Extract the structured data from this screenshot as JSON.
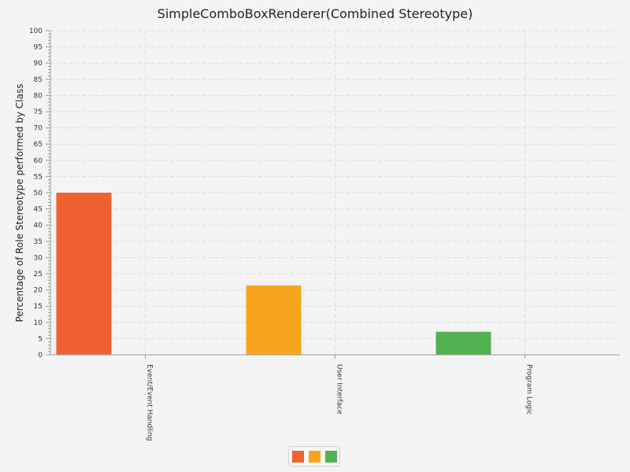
{
  "chart_data": {
    "type": "bar",
    "title": "SimpleComboBoxRenderer(Combined Stereotype)",
    "xlabel": "",
    "ylabel": "Percentage of Role Stereotype performed by Class",
    "categories": [
      "Event/Event Handling",
      "User Interface",
      "Program Logic"
    ],
    "values": [
      50,
      21.4,
      7.1
    ],
    "colors": [
      "#f06030",
      "#f8a51e",
      "#52b152"
    ],
    "ylim": [
      0,
      100
    ],
    "yticks": [
      0,
      5,
      10,
      15,
      20,
      25,
      30,
      35,
      40,
      45,
      50,
      55,
      60,
      65,
      70,
      75,
      80,
      85,
      90,
      95,
      100
    ],
    "grid": true,
    "legend": {
      "position": "bottom-center",
      "entries": [
        "",
        "",
        ""
      ]
    }
  }
}
